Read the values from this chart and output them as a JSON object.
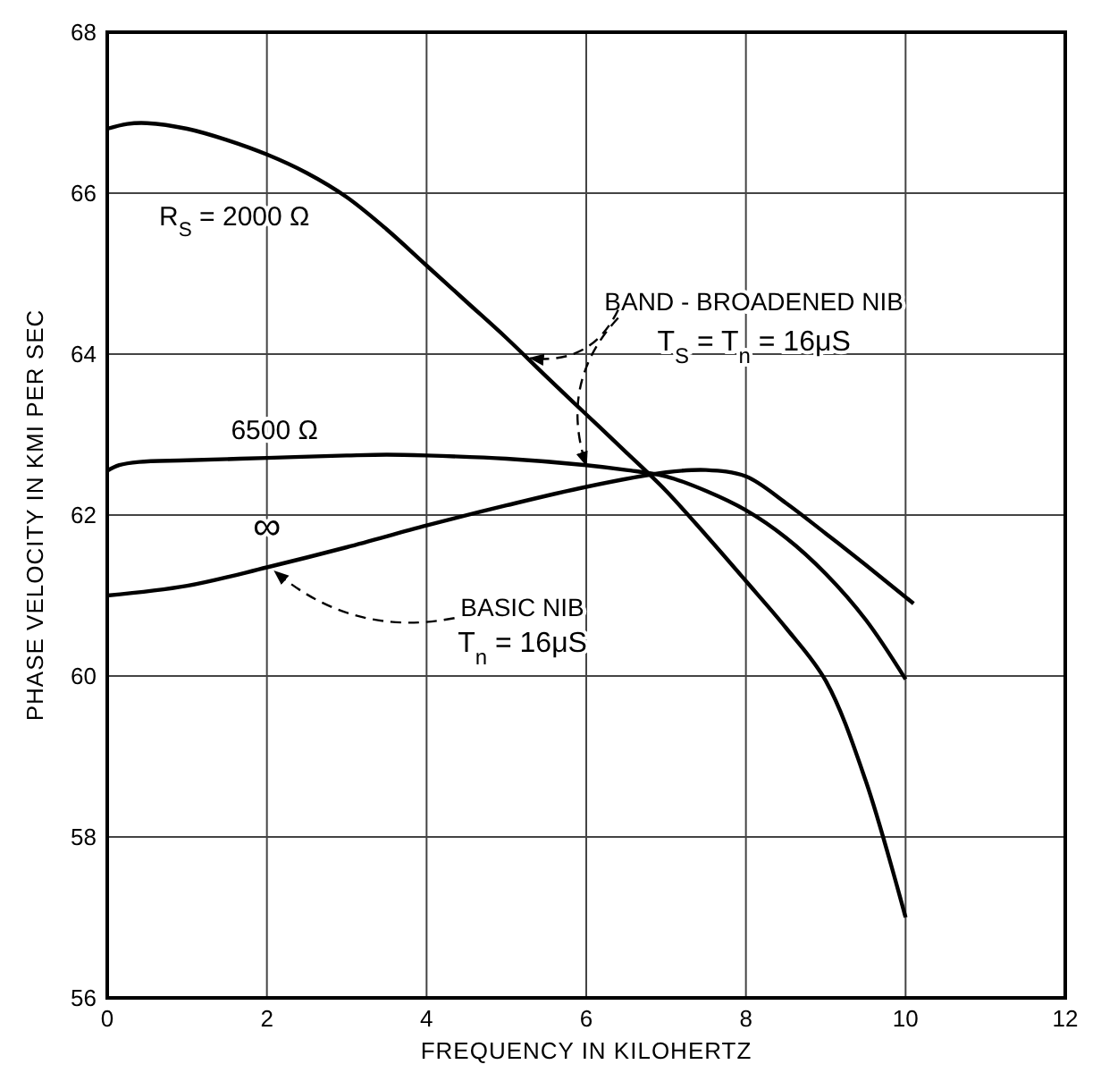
{
  "chart_data": {
    "type": "line",
    "xlabel": "FREQUENCY IN KILOHERTZ",
    "ylabel": "PHASE VELOCITY IN KMI PER SEC",
    "xlim": [
      0,
      12
    ],
    "ylim": [
      56,
      68
    ],
    "xticks": [
      0,
      2,
      4,
      6,
      8,
      10,
      12
    ],
    "yticks": [
      56,
      58,
      60,
      62,
      64,
      66,
      68
    ],
    "grid": true,
    "line_style": "solid",
    "marker": "none",
    "series": [
      {
        "name": "R$_{S}$ = 2000 Ω",
        "color": "#000000",
        "x": [
          0,
          0.25,
          0.5,
          1,
          1.5,
          2,
          2.5,
          3,
          3.5,
          4,
          4.5,
          5,
          5.5,
          6,
          6.5,
          7,
          7.5,
          8,
          8.5,
          9,
          9.5,
          10
        ],
        "values": [
          66.8,
          66.86,
          66.87,
          66.8,
          66.66,
          66.48,
          66.25,
          65.95,
          65.55,
          65.1,
          64.65,
          64.2,
          63.72,
          63.25,
          62.78,
          62.3,
          61.75,
          61.18,
          60.6,
          59.94,
          58.7,
          57.0
        ]
      },
      {
        "name": "6500 Ω",
        "color": "#000000",
        "x": [
          0,
          0.15,
          0.4,
          1,
          2,
          3,
          3.5,
          4,
          5,
          6,
          6.5,
          7,
          7.5,
          8,
          8.5,
          9,
          9.5,
          10
        ],
        "values": [
          62.55,
          62.62,
          62.66,
          62.68,
          62.71,
          62.74,
          62.75,
          62.74,
          62.7,
          62.62,
          62.56,
          62.48,
          62.3,
          62.06,
          61.72,
          61.27,
          60.7,
          59.96
        ]
      },
      {
        "name": "∞",
        "color": "#000000",
        "x": [
          0,
          1,
          2,
          3,
          4,
          5,
          6,
          7,
          7.5,
          8,
          8.5,
          9,
          9.5,
          10.1
        ],
        "values": [
          61.0,
          61.12,
          61.35,
          61.6,
          61.87,
          62.12,
          62.35,
          62.53,
          62.56,
          62.48,
          62.15,
          61.77,
          61.38,
          60.9
        ]
      }
    ],
    "annotations": [
      {
        "text": "BAND - BROADENED NIB",
        "x": 5.3,
        "y": 63.95
      },
      "T$_{S}$ = T$_{n}$ = 16μS",
      {
        "text": "BASIC NIB",
        "x": 2.1,
        "y": 61.3
      },
      "T$_{n}$ = 16μS"
    ]
  }
}
